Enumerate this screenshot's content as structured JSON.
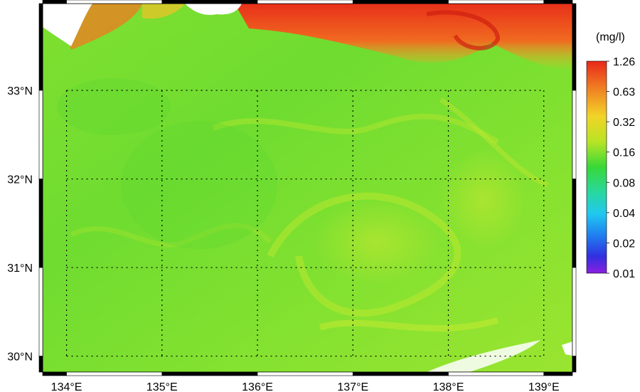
{
  "map": {
    "lat_labels": [
      "33°N",
      "32°N",
      "31°N",
      "30°N"
    ],
    "lon_labels": [
      "134°E",
      "135°E",
      "136°E",
      "137°E",
      "138°E",
      "139°E"
    ],
    "lat_values": [
      33,
      32,
      31,
      30
    ],
    "lon_values": [
      134,
      135,
      136,
      137,
      138,
      139
    ],
    "lat_range": [
      29.82,
      33.98
    ],
    "lon_range": [
      133.75,
      139.3
    ],
    "grid": "dotted"
  },
  "colorbar": {
    "unit": "(mg/l)",
    "labels": [
      "1.26",
      "0.63",
      "0.32",
      "0.16",
      "0.08",
      "0.04",
      "0.02",
      "0.01"
    ],
    "colors": [
      "#e8281a",
      "#f07020",
      "#f5b020",
      "#e0e020",
      "#90e020",
      "#30d840",
      "#20d8a0",
      "#20c8f0",
      "#2090f0",
      "#2040e0",
      "#5020d8",
      "#9020e0"
    ]
  }
}
